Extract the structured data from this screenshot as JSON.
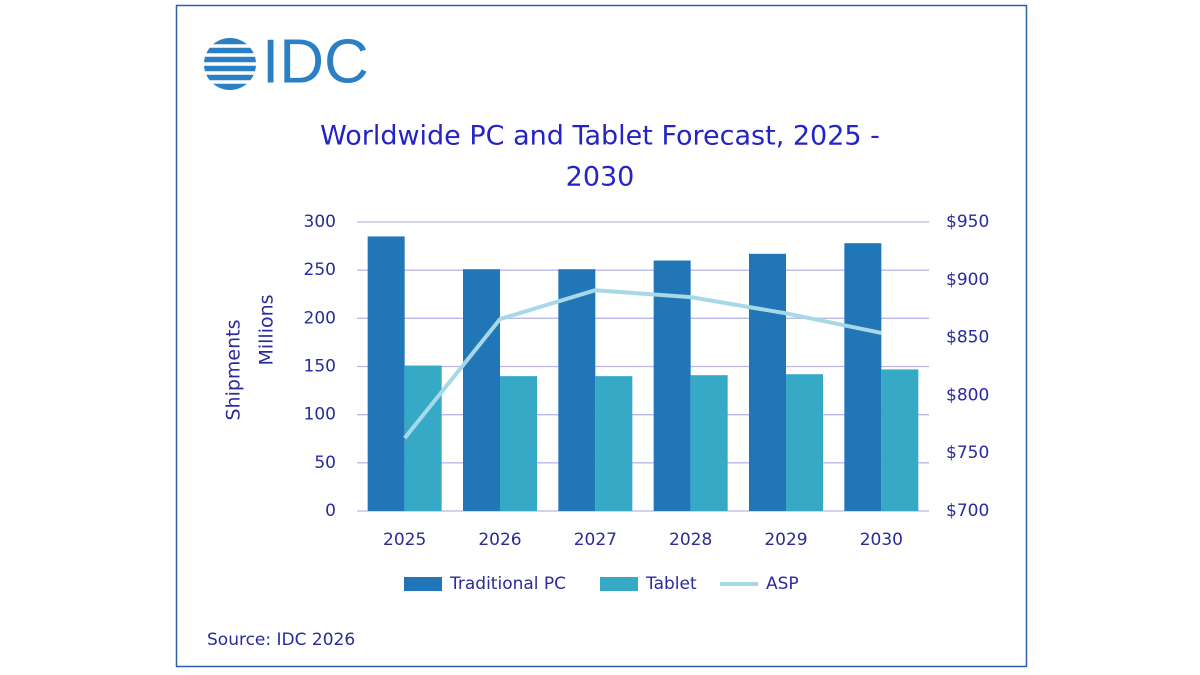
{
  "chart_data": {
    "type": "bar_line",
    "logo": "IDC",
    "title_lines": [
      "Worldwide PC and Tablet Forecast, 2025 -",
      "2030"
    ],
    "ylabel_lines": [
      "Shipments",
      "Millions"
    ],
    "categories": [
      "2025",
      "2026",
      "2027",
      "2028",
      "2029",
      "2030"
    ],
    "series": [
      {
        "name": "Traditional PC",
        "type": "bar",
        "color": "#2176b8",
        "values": [
          285,
          251,
          251,
          260,
          267,
          278
        ]
      },
      {
        "name": "Tablet",
        "type": "bar",
        "color": "#36a9c6",
        "values": [
          151,
          140,
          140,
          141,
          142,
          147
        ]
      },
      {
        "name": "ASP",
        "type": "line",
        "axis": "y2",
        "color": "#a6d8e8",
        "values": [
          763,
          866,
          891,
          885,
          871,
          854
        ]
      }
    ],
    "ylim": [
      0,
      300
    ],
    "yticks": [
      0,
      50,
      100,
      150,
      200,
      250,
      300
    ],
    "y2lim": [
      700,
      950
    ],
    "y2ticks": [
      {
        "value": 700,
        "label": "$700"
      },
      {
        "value": 750,
        "label": "$750"
      },
      {
        "value": 800,
        "label": "$800"
      },
      {
        "value": 850,
        "label": "$850"
      },
      {
        "value": 900,
        "label": "$900"
      },
      {
        "value": 950,
        "label": "$950"
      }
    ],
    "grid": true,
    "legend": "bottom",
    "source": "Source: IDC 2026"
  }
}
